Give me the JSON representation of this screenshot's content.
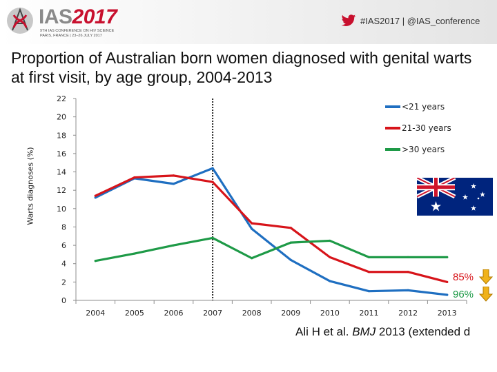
{
  "header": {
    "logo_text": "IAS",
    "logo_year": "2017",
    "logo_sub1": "9TH IAS CONFERENCE ON HIV SCIENCE",
    "logo_sub2": "PARIS, FRANCE | 23–26 JULY 2017",
    "social_text": "#IAS2017 | @IAS_conference"
  },
  "title": "Proportion of Australian born women diagnosed with genital warts at first visit, by age group, 2004-2013",
  "annotations": {
    "pct_1": "85%",
    "pct_2": "96%",
    "pct_1_color": "#d7141a",
    "pct_2_color": "#1e9a47",
    "arrow_color": "#f0b21a"
  },
  "citation": {
    "prefix": "Ali H et al. ",
    "journal": "BMJ",
    "suffix": " 2013 (extended d"
  },
  "chart_data": {
    "type": "line",
    "title": "",
    "xlabel": "",
    "ylabel": "Warts diagnoses (%)",
    "x": [
      "2004",
      "2005",
      "2006",
      "2007",
      "2008",
      "2009",
      "2010",
      "2011",
      "2012",
      "2013"
    ],
    "ylim": [
      0,
      22
    ],
    "yticks": [
      0,
      2,
      4,
      6,
      8,
      10,
      12,
      14,
      16,
      18,
      20,
      22
    ],
    "grid": false,
    "legend_position": "top-right",
    "vline_at": "2007",
    "series": [
      {
        "name": "<21 years",
        "color": "#1f6fc1",
        "values": [
          11.2,
          13.3,
          12.7,
          14.4,
          7.8,
          4.4,
          2.1,
          1.0,
          1.1,
          0.6
        ]
      },
      {
        "name": "21-30 years",
        "color": "#d7141a",
        "values": [
          11.4,
          13.4,
          13.6,
          12.9,
          8.4,
          7.9,
          4.7,
          3.1,
          3.1,
          2.0
        ]
      },
      {
        "name": ">30 years",
        "color": "#1e9a47",
        "values": [
          4.3,
          5.1,
          6.0,
          6.8,
          4.6,
          6.3,
          6.5,
          4.7,
          4.7,
          4.7
        ]
      }
    ]
  }
}
